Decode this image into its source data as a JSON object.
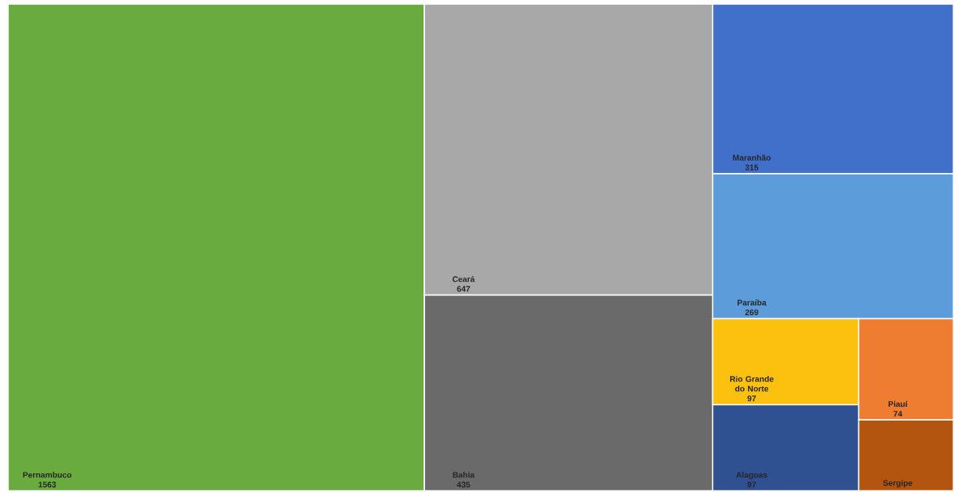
{
  "chart_data": {
    "type": "other",
    "categories": [
      "Pernambuco",
      "Ceará",
      "Bahia",
      "Maranhão",
      "Paraíba",
      "Rio Grande do Norte",
      "Alagoas",
      "Piauí",
      "Sergipe"
    ],
    "values": [
      1563,
      647,
      435,
      315,
      269,
      97,
      97,
      74,
      null
    ],
    "colors": [
      "#6aab3f",
      "#a8a8a8",
      "#6a6a6a",
      "#4170cb",
      "#5d9cdb",
      "#fcc10f",
      "#2f5091",
      "#ee7d32",
      "#b4550f"
    ],
    "value_labels": [
      "1563",
      "647",
      "435",
      "315",
      "269",
      "97",
      "97",
      "74",
      null
    ]
  }
}
